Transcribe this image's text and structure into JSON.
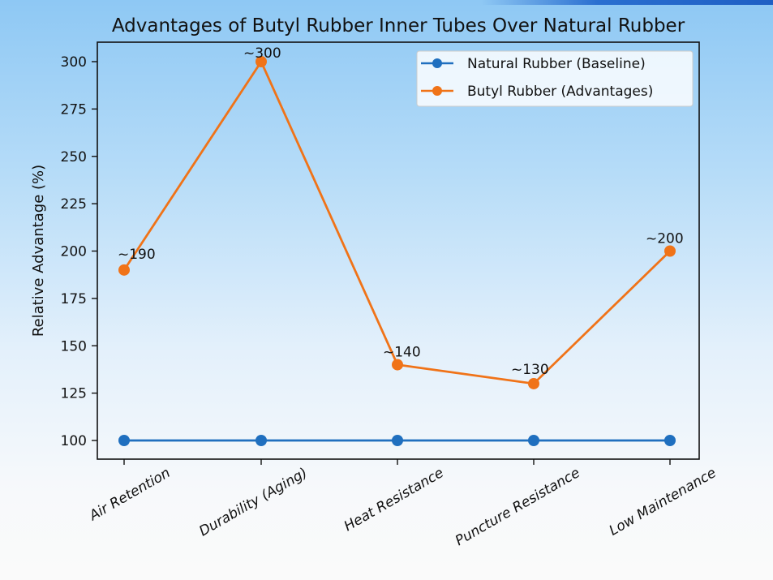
{
  "chart_data": {
    "type": "line",
    "title": "Advantages of Butyl Rubber Inner Tubes Over Natural Rubber",
    "xlabel": "",
    "ylabel": "Relative Advantage (%)",
    "categories": [
      "Air Retention",
      "Durability (Aging)",
      "Heat Resistance",
      "Puncture Resistance",
      "Low Maintenance"
    ],
    "series": [
      {
        "name": "Natural Rubber (Baseline)",
        "color": "#1f6fbf",
        "values": [
          100,
          100,
          100,
          100,
          100
        ]
      },
      {
        "name": "Butyl Rubber (Advantages)",
        "color": "#f07318",
        "values": [
          190,
          300,
          140,
          130,
          200
        ]
      }
    ],
    "annotations": [
      "~190",
      "~300",
      "~140",
      "~130",
      "~200"
    ],
    "yticks": [
      100,
      125,
      150,
      175,
      200,
      225,
      250,
      275,
      300
    ],
    "ylim": [
      90,
      310
    ],
    "grid": false,
    "legend_position": "upper right"
  },
  "ytick_labels": [
    "100",
    "125",
    "150",
    "175",
    "200",
    "225",
    "250",
    "275",
    "300"
  ],
  "legend": {
    "items": [
      "Natural Rubber (Baseline)",
      "Butyl Rubber (Advantages)"
    ]
  }
}
